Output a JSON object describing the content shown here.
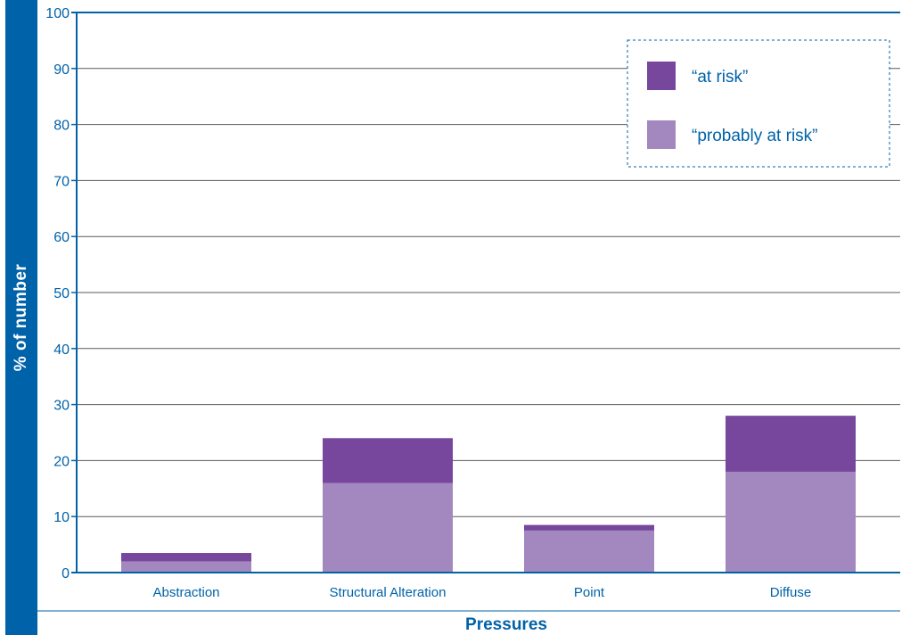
{
  "chart_data": {
    "type": "bar",
    "stacked": true,
    "title": "",
    "xlabel": "Pressures",
    "ylabel": "% of number",
    "ylim": [
      0,
      100
    ],
    "yticks": [
      0,
      10,
      20,
      30,
      40,
      50,
      60,
      70,
      80,
      90,
      100
    ],
    "categories": [
      "Abstraction",
      "Structural Alteration",
      "Point",
      "Diffuse"
    ],
    "series": [
      {
        "name": "“probably at risk”",
        "color": "#a388c0",
        "values": [
          2,
          16,
          7.5,
          18
        ]
      },
      {
        "name": "“at risk”",
        "color": "#76479c",
        "values": [
          1.5,
          8,
          1,
          10
        ]
      }
    ],
    "grid": true,
    "legend_position": "top-right",
    "colors": {
      "axis": "#0062a9",
      "grid": "#5a5a5a",
      "text": "#0062a9"
    }
  }
}
